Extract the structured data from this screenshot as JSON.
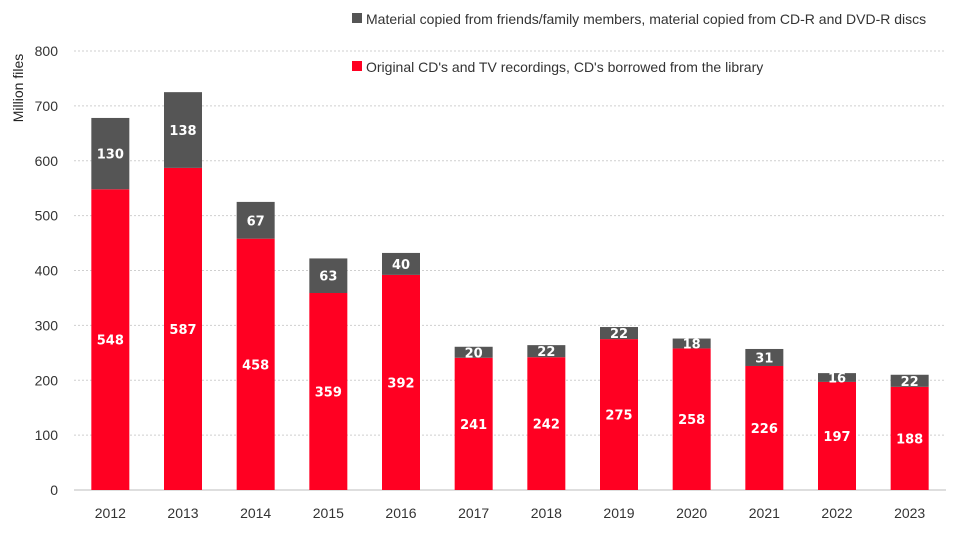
{
  "chart_data": {
    "type": "bar",
    "stacked": true,
    "title": "",
    "xlabel": "",
    "ylabel": "Million files",
    "ylim": [
      0,
      800
    ],
    "yticks": [
      0,
      100,
      200,
      300,
      400,
      500,
      600,
      700,
      800
    ],
    "grid": "horizontal dotted",
    "legend_position": "top-right",
    "categories": [
      "2012",
      "2013",
      "2014",
      "2015",
      "2016",
      "2017",
      "2018",
      "2019",
      "2020",
      "2021",
      "2022",
      "2023"
    ],
    "series": [
      {
        "name": "Original CD's and TV recordings, CD's borrowed from the library",
        "color": "#ff0022",
        "values": [
          548,
          587,
          458,
          359,
          392,
          241,
          242,
          275,
          258,
          226,
          197,
          188
        ]
      },
      {
        "name": "Material copied from friends/family members, material copied from CD-R and DVD-R discs",
        "color": "#555555",
        "values": [
          130,
          138,
          67,
          63,
          40,
          20,
          22,
          22,
          18,
          31,
          16,
          22
        ]
      }
    ]
  }
}
